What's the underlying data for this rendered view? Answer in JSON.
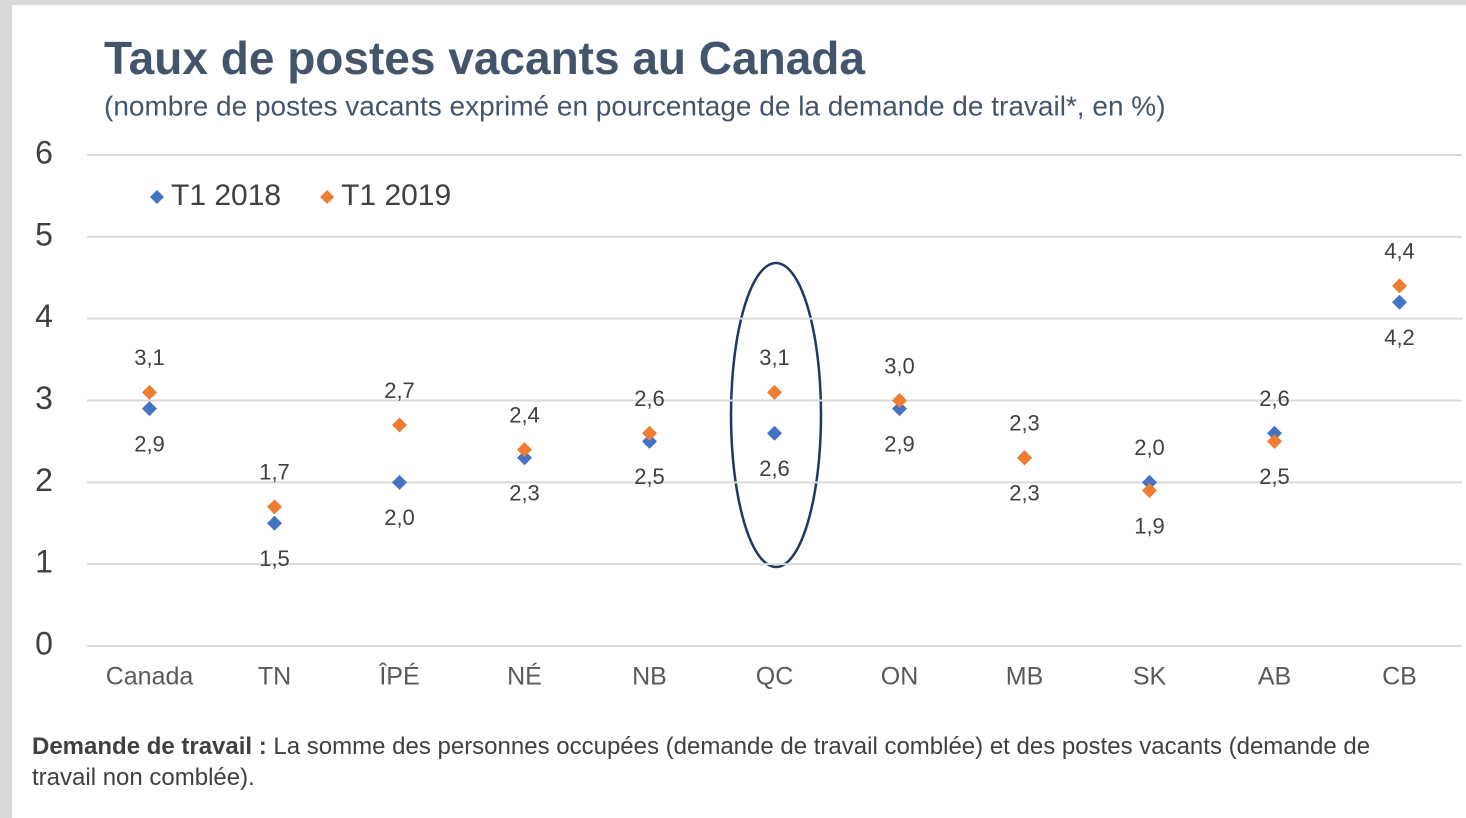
{
  "chart_data": {
    "type": "scatter",
    "title": "Taux de postes vacants au Canada",
    "subtitle": "(nombre de postes vacants exprimé en pourcentage de la demande de travail*, en %)",
    "categories": [
      "Canada",
      "TN",
      "ÎPÉ",
      "NÉ",
      "NB",
      "QC",
      "ON",
      "MB",
      "SK",
      "AB",
      "CB"
    ],
    "series": [
      {
        "name": "T1 2018",
        "color": "#4472c4",
        "values": [
          2.9,
          1.5,
          2.0,
          2.3,
          2.5,
          2.6,
          2.9,
          2.3,
          2.0,
          2.6,
          4.2
        ],
        "value_labels": [
          "2,9",
          "1,5",
          "2,0",
          "2,3",
          "2,5",
          "2,6",
          "2,9",
          "2,3",
          "2,0",
          "2,6",
          "4,2"
        ]
      },
      {
        "name": "T1 2019",
        "color": "#ed7d31",
        "values": [
          3.1,
          1.7,
          2.7,
          2.4,
          2.6,
          3.1,
          3.0,
          2.3,
          1.9,
          2.5,
          4.4
        ],
        "value_labels": [
          "3,1",
          "1,7",
          "2,7",
          "2,4",
          "2,6",
          "3,1",
          "3,0",
          "2,3",
          "1,9",
          "2,5",
          "4,4"
        ]
      }
    ],
    "ylim": [
      0,
      6
    ],
    "yticks": [
      0,
      1,
      2,
      3,
      4,
      5,
      6
    ],
    "grid": true,
    "legend": "top-left",
    "footnote": {
      "term": "Demande de travail :",
      "text": "La somme des personnes occupées (demande de travail comblée) et des postes vacants (demande de travail non comblée)."
    }
  }
}
